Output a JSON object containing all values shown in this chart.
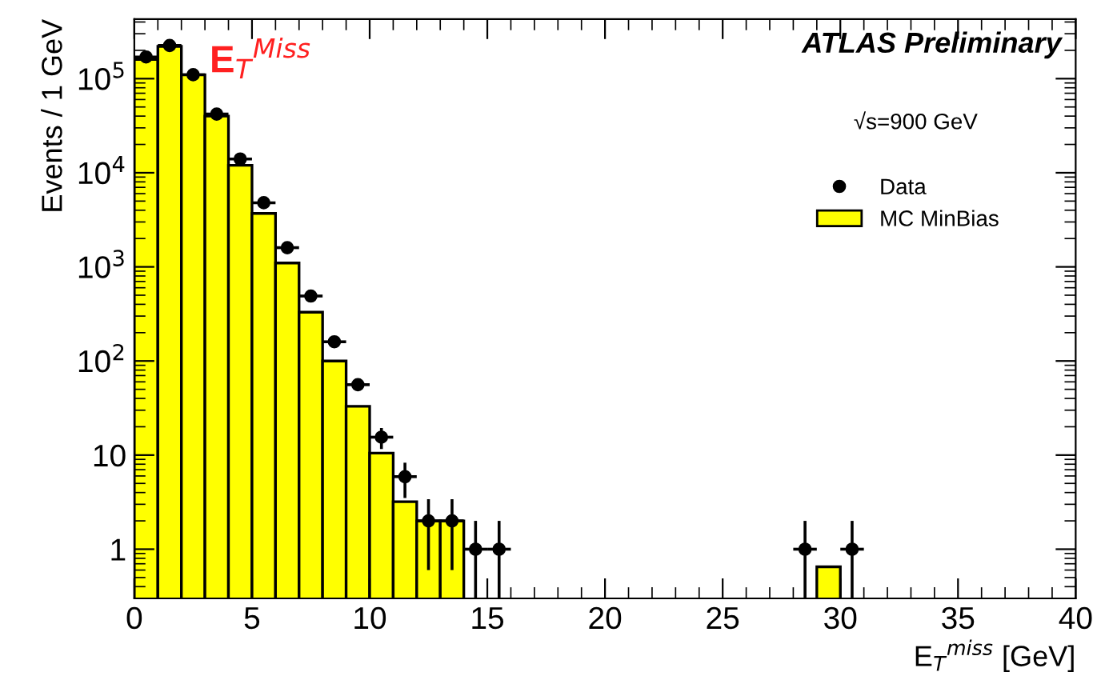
{
  "chart_data": {
    "type": "histogram",
    "xlabel": "E$_{T}$$^{miss}$ [GeV]",
    "ylabel": "Events / 1 GeV",
    "annotations": [
      "E$_{T}$$^{Miss}$",
      "ATLAS Preliminary",
      "√s=900 GeV"
    ],
    "bins": [
      0,
      1,
      2,
      3,
      4,
      5,
      6,
      7,
      8,
      9,
      10,
      11,
      12,
      13,
      14,
      15,
      16,
      17,
      18,
      19,
      20,
      21,
      22,
      23,
      24,
      25,
      26,
      27,
      28,
      29,
      30,
      31,
      32,
      33,
      34,
      35,
      36,
      37,
      38,
      39,
      40
    ],
    "series": [
      {
        "name": "MC MinBias",
        "color": "#ffff00",
        "values": [
          160000,
          220000,
          110000,
          40000,
          12000,
          3700,
          1100,
          330,
          100,
          33,
          10.5,
          3.2,
          2,
          2,
          null,
          null,
          null,
          null,
          null,
          null,
          null,
          null,
          null,
          null,
          null,
          null,
          null,
          null,
          null,
          0.65,
          null,
          null,
          null,
          null,
          null,
          null,
          null,
          null,
          null,
          null
        ]
      },
      {
        "name": "Data",
        "type": "scatter",
        "color": "#000000",
        "x": [
          0.5,
          1.5,
          2.5,
          3.5,
          4.5,
          5.5,
          6.5,
          7.5,
          8.5,
          9.5,
          10.5,
          11.5,
          12.5,
          13.5,
          14.5,
          15.5,
          28.5,
          30.5
        ],
        "values": [
          170000,
          225000,
          110000,
          42000,
          14000,
          4800,
          1600,
          490,
          160,
          56,
          15.5,
          5.9,
          2,
          2,
          1,
          1,
          1,
          1
        ],
        "errors": [
          null,
          null,
          null,
          null,
          null,
          null,
          null,
          null,
          null,
          7.5,
          3.9,
          2.4,
          1.4,
          1.4,
          [
            0.3,
            2
          ],
          [
            0.3,
            2
          ],
          [
            0.3,
            2
          ],
          [
            0.3,
            2
          ]
        ],
        "xerrors": [
          0.5,
          0.5,
          0.5,
          0.5,
          0.5,
          0.5,
          0.5,
          0.5,
          0.5,
          0.5,
          0.5,
          0.5,
          0.5,
          0.5,
          0.5,
          0.5,
          0.5,
          0.5
        ]
      }
    ],
    "xlim": [
      0,
      40
    ],
    "xticks": [
      0,
      5,
      10,
      15,
      20,
      25,
      30,
      35,
      40
    ],
    "ylim": [
      0.3,
      430000
    ],
    "yticks": [
      1,
      10,
      {
        "value": 100,
        "label": "10$^{2}$"
      },
      {
        "value": 1000,
        "label": "10$^{3}$"
      },
      {
        "value": 10000,
        "label": "10$^{4}$"
      },
      {
        "value": 100000,
        "label": "10$^{5}$"
      }
    ],
    "log": "y",
    "grid": false,
    "legend": "top right",
    "marker": "circle"
  }
}
